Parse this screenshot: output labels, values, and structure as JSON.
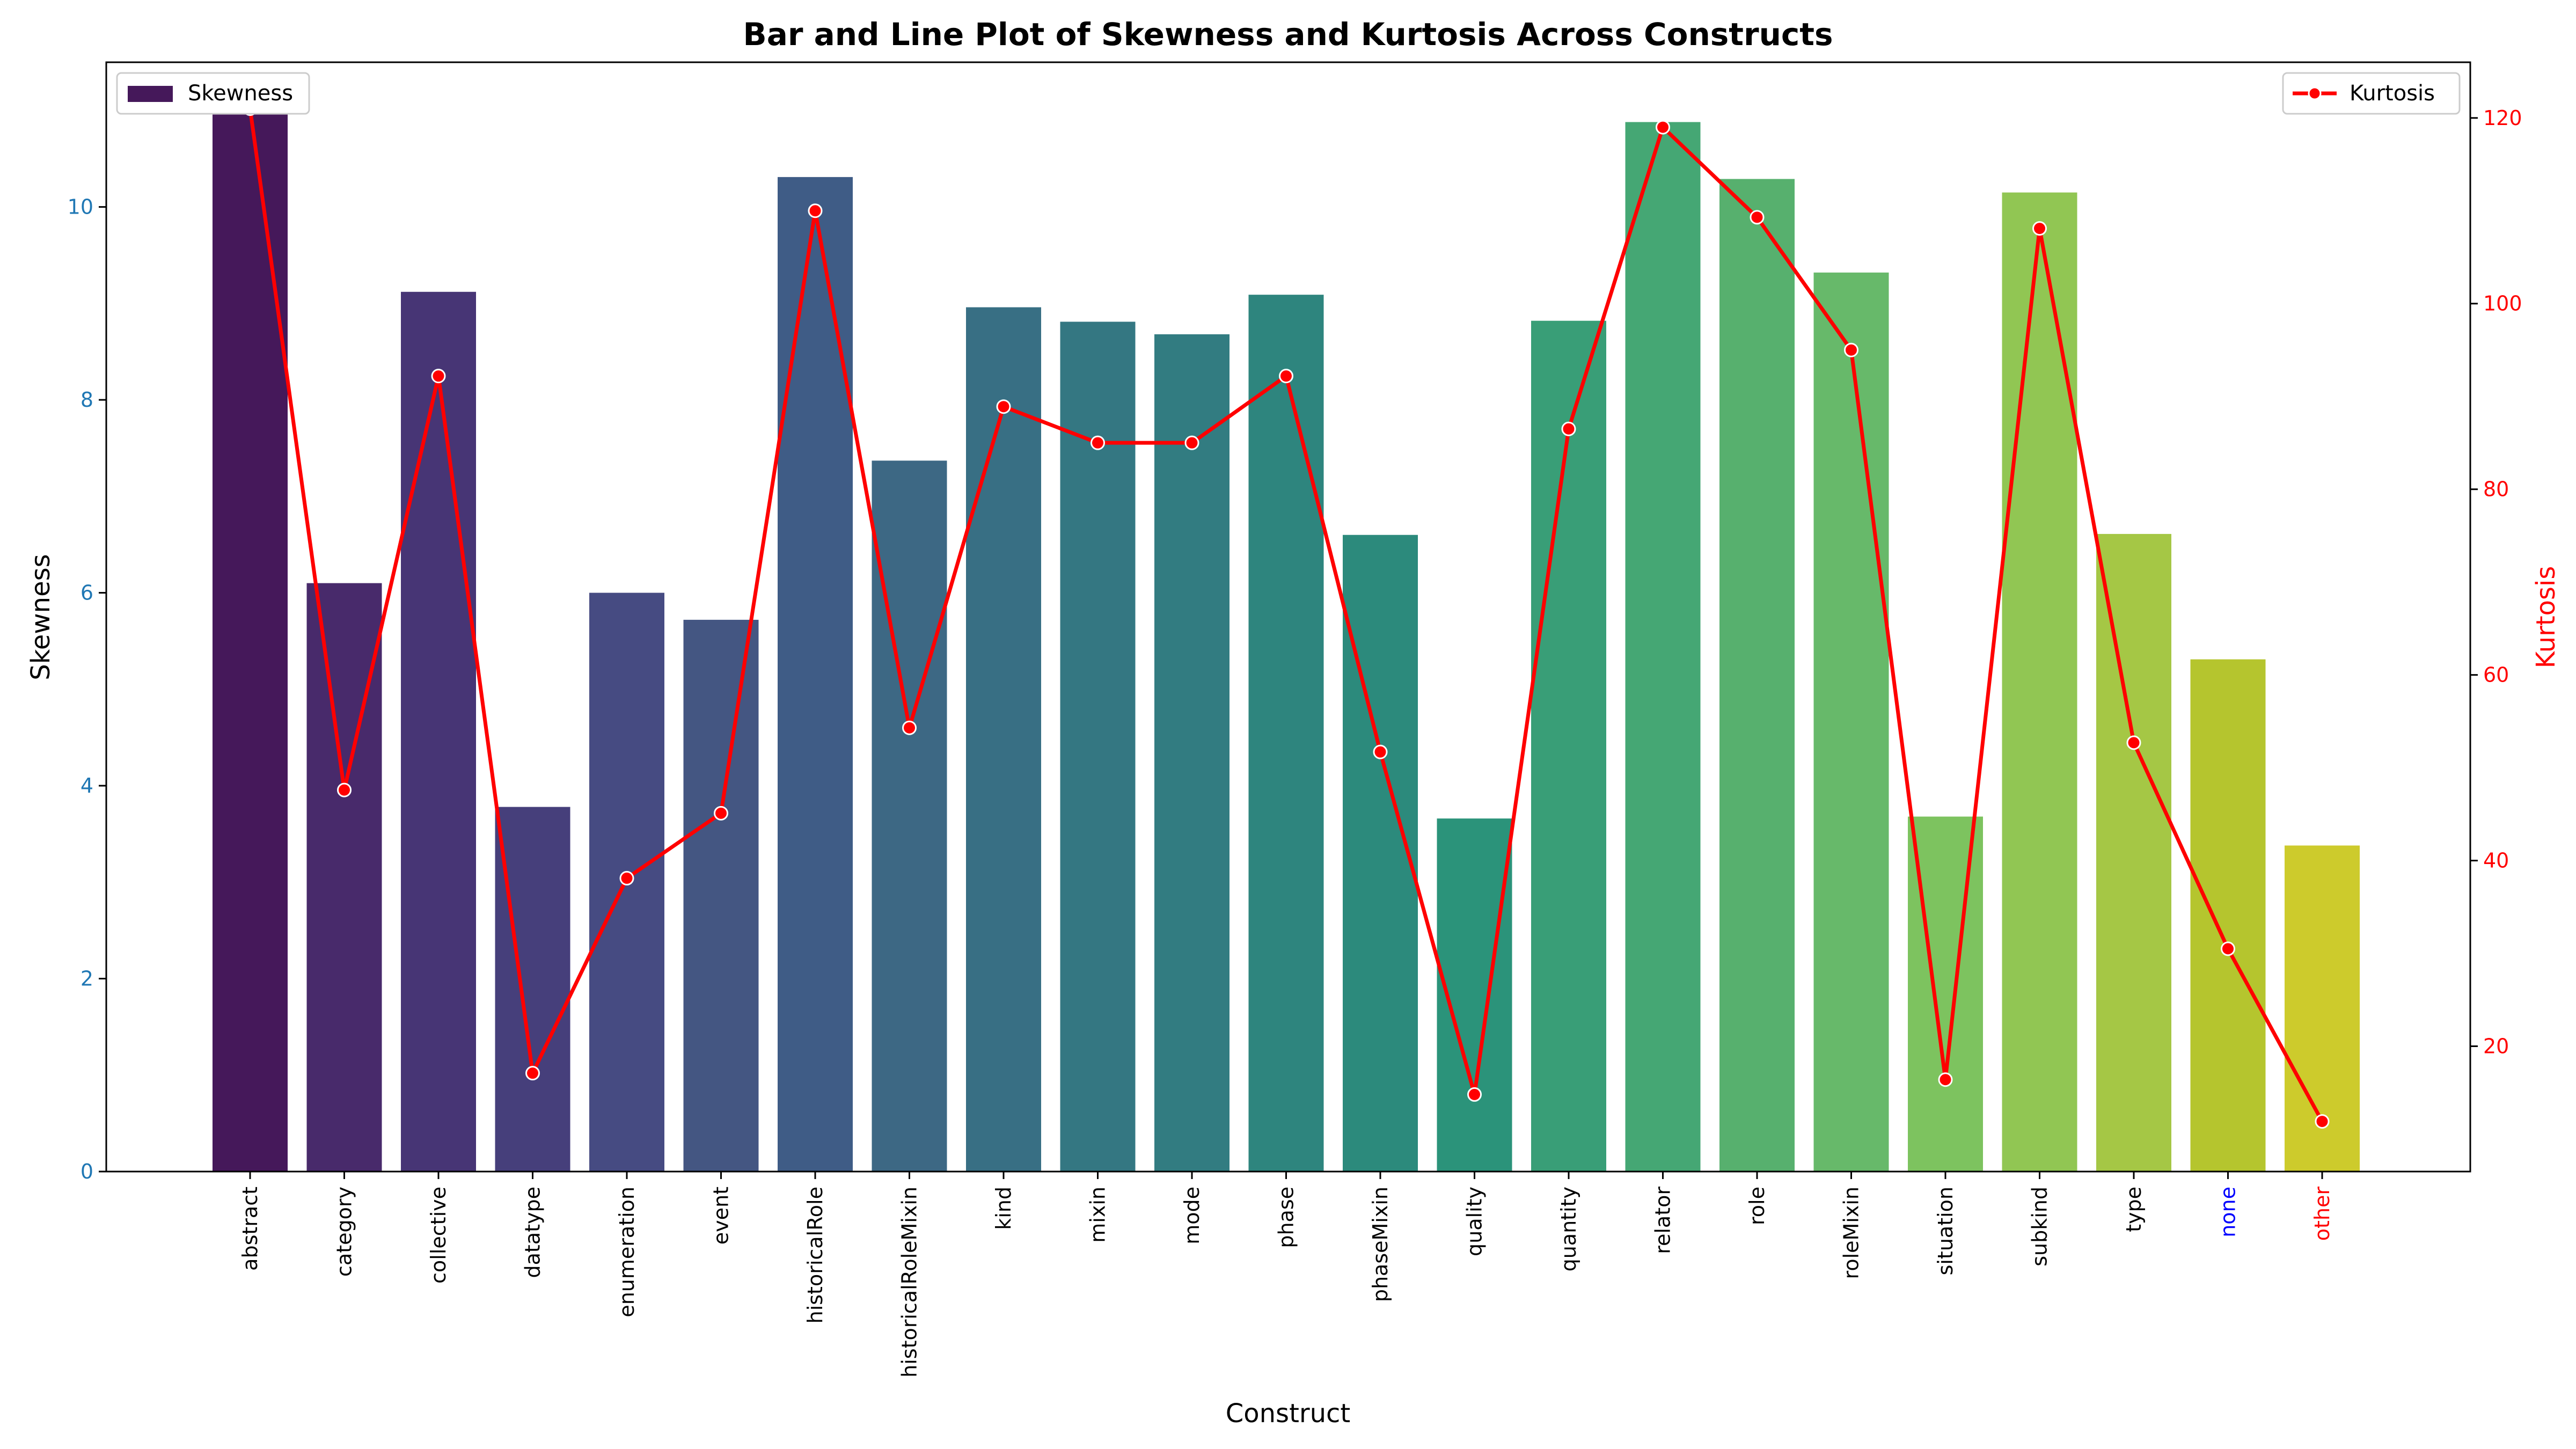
{
  "chart_data": {
    "type": "bar",
    "title": "Bar and Line Plot of Skewness and Kurtosis Across Constructs",
    "xlabel": "Construct",
    "categories": [
      "abstract",
      "category",
      "collective",
      "datatype",
      "enumeration",
      "event",
      "historicalRole",
      "historicalRoleMixin",
      "kind",
      "mixin",
      "mode",
      "phase",
      "phaseMixin",
      "quality",
      "quantity",
      "relator",
      "role",
      "roleMixin",
      "situation",
      "subkind",
      "type",
      "none",
      "other"
    ],
    "category_label_colors": {
      "none": "#0000ff",
      "other": "#ff0000"
    },
    "left_axis": {
      "label": "Skewness",
      "ylim": [
        0,
        11.5
      ],
      "ticks": [
        0,
        2,
        4,
        6,
        8,
        10
      ],
      "tick_color": "#1f77b4"
    },
    "right_axis": {
      "label": "Kurtosis",
      "ylim": [
        6.5,
        126
      ],
      "ticks": [
        20,
        40,
        60,
        80,
        100,
        120
      ],
      "color": "#ff0000"
    },
    "series": [
      {
        "name": "Skewness",
        "kind": "bar",
        "axis": "left",
        "values": [
          11.0,
          6.1,
          9.12,
          3.78,
          6.0,
          5.72,
          10.31,
          7.37,
          8.96,
          8.81,
          8.68,
          9.09,
          6.6,
          3.66,
          8.82,
          10.88,
          10.29,
          9.32,
          3.68,
          10.15,
          6.61,
          5.31,
          3.38
        ],
        "colors": [
          "#45185a",
          "#482a6b",
          "#473575",
          "#463f7b",
          "#464b82",
          "#445682",
          "#3f5c86",
          "#3d6884",
          "#386f84",
          "#347782",
          "#327c81",
          "#2e857e",
          "#2c8a7c",
          "#2b937a",
          "#399e77",
          "#45a774",
          "#57b06e",
          "#67b96a",
          "#7dc35f",
          "#91c653",
          "#a5c745",
          "#b5c52e",
          "#cdcb2c"
        ]
      },
      {
        "name": "Kurtosis",
        "kind": "line",
        "axis": "right",
        "color": "#ff0000",
        "values": [
          121,
          47.6,
          92.2,
          17.1,
          38.1,
          45.1,
          110.0,
          54.3,
          88.9,
          85.0,
          85.0,
          92.2,
          51.7,
          14.8,
          86.5,
          119.0,
          109.3,
          95.0,
          16.4,
          108.1,
          52.7,
          30.5,
          11.9
        ]
      }
    ],
    "grid": false,
    "legend": [
      {
        "series": "Skewness",
        "placement": "top-left"
      },
      {
        "series": "Kurtosis",
        "placement": "top-right"
      }
    ]
  }
}
